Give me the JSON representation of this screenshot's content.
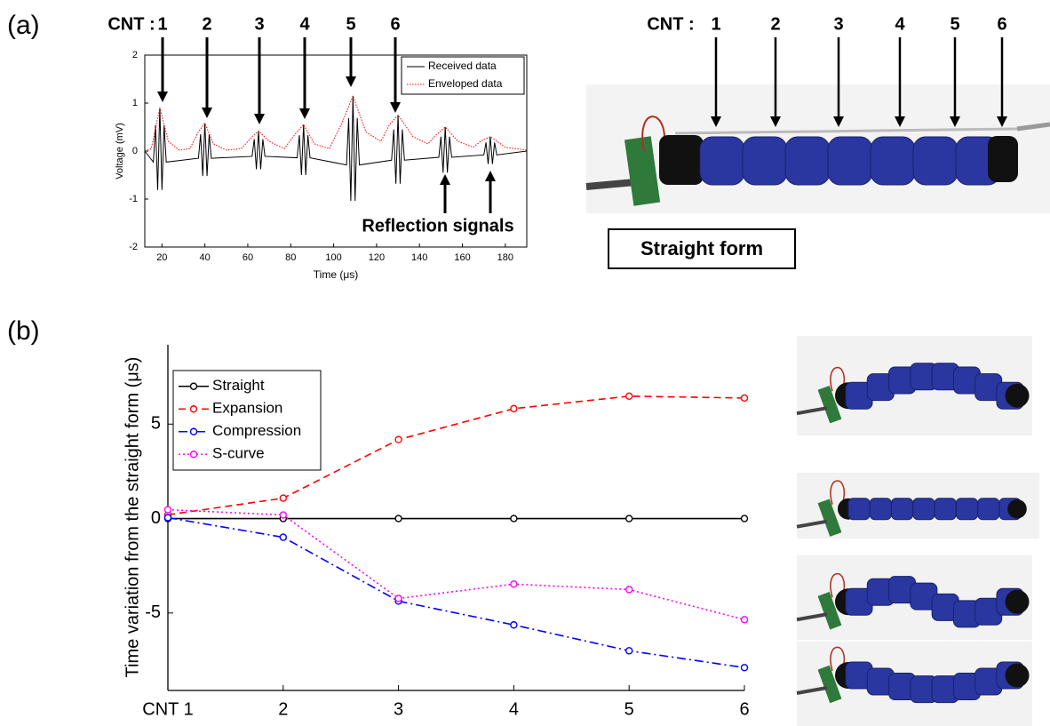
{
  "panels": [
    "(a)",
    "(b)"
  ],
  "chart_data": [
    {
      "type": "line",
      "xlabel": "Time (μs)",
      "ylabel": "Voltage (mV)",
      "xlim": [
        12,
        190
      ],
      "ylim": [
        -2,
        2
      ],
      "xticks": [
        20,
        40,
        60,
        80,
        100,
        120,
        140,
        160,
        180
      ],
      "yticks": [
        -2,
        -1,
        0,
        1,
        2
      ],
      "legend": "upper right",
      "series": [
        {
          "name": "Received data",
          "color": "#000000",
          "line_style": "solid",
          "x": [
            12,
            16,
            17,
            18,
            19,
            20,
            21,
            22,
            37,
            38,
            39,
            40,
            41,
            42,
            43,
            62,
            63,
            64,
            65,
            66,
            67,
            68,
            83,
            84,
            85,
            86,
            87,
            88,
            89,
            106,
            107,
            108,
            109,
            110,
            111,
            112,
            127,
            128,
            129,
            130,
            131,
            132,
            133,
            149,
            150,
            151,
            152,
            153,
            154,
            155,
            170,
            171,
            172,
            173,
            174,
            175,
            176,
            190
          ],
          "values": [
            0,
            -0.23,
            0.54,
            -0.81,
            0.9,
            -0.81,
            0.54,
            -0.23,
            -0.15,
            0.35,
            -0.52,
            0.58,
            -0.52,
            0.35,
            -0.15,
            -0.11,
            0.25,
            -0.38,
            0.42,
            -0.38,
            0.25,
            -0.11,
            -0.14,
            0.33,
            -0.5,
            0.55,
            -0.5,
            0.33,
            -0.14,
            -0.29,
            0.69,
            -1.04,
            1.15,
            -1.04,
            0.69,
            -0.29,
            -0.19,
            0.45,
            -0.68,
            0.75,
            -0.68,
            0.45,
            -0.19,
            -0.13,
            0.3,
            -0.45,
            0.5,
            -0.45,
            0.3,
            -0.13,
            -0.08,
            0.18,
            -0.27,
            0.3,
            -0.27,
            0.18,
            -0.08,
            0
          ]
        },
        {
          "name": "Enveloped data",
          "color": "#ff0000",
          "line_style": "dotted",
          "x": [
            12,
            15,
            19,
            23,
            28,
            33,
            37,
            40,
            44,
            50,
            57,
            62,
            65,
            70,
            77,
            82,
            86,
            91,
            98,
            104,
            109,
            115,
            122,
            126,
            130,
            137,
            144,
            148,
            152,
            158,
            165,
            169,
            173,
            180,
            190
          ],
          "values": [
            0,
            0.05,
            0.9,
            0.2,
            0.02,
            0.05,
            0.4,
            0.58,
            0.15,
            0.02,
            0.05,
            0.3,
            0.42,
            0.2,
            0.05,
            0.35,
            0.55,
            0.15,
            0.05,
            0.6,
            1.15,
            0.4,
            0.2,
            0.55,
            0.75,
            0.3,
            0.15,
            0.35,
            0.5,
            0.2,
            0.08,
            0.22,
            0.3,
            0.08,
            0.02
          ]
        }
      ],
      "cnt_label": "CNT :",
      "cnt_markers": [
        "1",
        "2",
        "3",
        "4",
        "5",
        "6"
      ],
      "annotation": "Reflection signals"
    },
    {
      "type": "line",
      "ylabel": "Time variation from the straight form (μs)",
      "categories": [
        "CNT 1",
        "2",
        "3",
        "4",
        "5",
        "6"
      ],
      "ylim": [
        -9.1,
        9.2
      ],
      "yticks": [
        -5,
        0,
        5
      ],
      "legend": "upper left",
      "markers": "circle",
      "series": [
        {
          "name": "Straight",
          "color": "#000000",
          "line_style": "solid",
          "values": [
            0,
            0,
            0,
            0,
            0,
            0
          ]
        },
        {
          "name": "Expansion",
          "color": "#ff0000",
          "line_style": "dashed",
          "values": [
            0.2,
            1.08,
            4.18,
            5.82,
            6.48,
            6.38
          ]
        },
        {
          "name": "Compression",
          "color": "#0000ff",
          "line_style": "dashdot",
          "values": [
            0.05,
            -0.99,
            -4.37,
            -5.63,
            -7.0,
            -7.89
          ]
        },
        {
          "name": "S-curve",
          "color": "#ff00ff",
          "line_style": "dotted",
          "values": [
            0.47,
            0.19,
            -4.23,
            -3.47,
            -3.76,
            -5.35
          ]
        }
      ]
    }
  ],
  "photo": {
    "cnt_label": "CNT :",
    "cnt_markers": [
      "1",
      "2",
      "3",
      "4",
      "5",
      "6"
    ],
    "caption": "Straight form"
  }
}
